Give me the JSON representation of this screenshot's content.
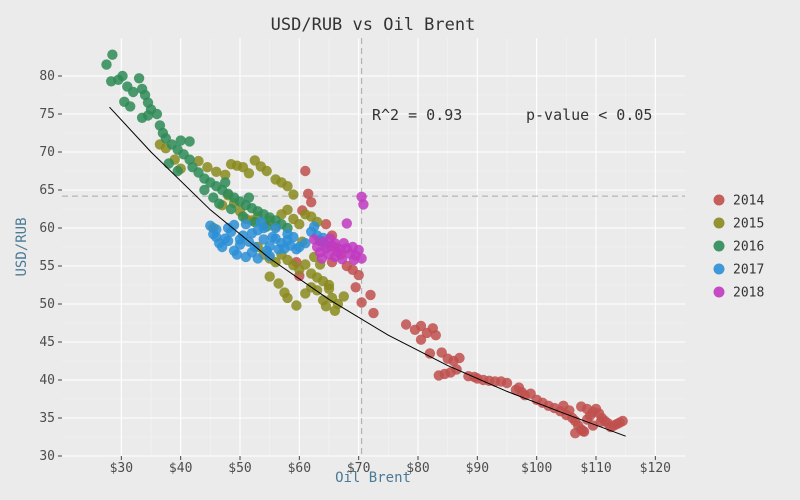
{
  "chart_data": {
    "type": "scatter",
    "title": "USD/RUB vs Oil Brent",
    "xlabel": "Oil Brent",
    "ylabel": "USD/RUB",
    "xlim": [
      20,
      125
    ],
    "ylim": [
      30,
      85
    ],
    "x_ticks": [
      30,
      40,
      50,
      60,
      70,
      80,
      90,
      100,
      110,
      120
    ],
    "x_tick_labels": [
      "$30",
      "$40",
      "$50",
      "$60",
      "$70",
      "$80",
      "$90",
      "$100",
      "$110",
      "$120"
    ],
    "y_ticks": [
      30,
      35,
      40,
      45,
      50,
      55,
      60,
      65,
      70,
      75,
      80
    ],
    "y_tick_labels": [
      "30",
      "35",
      "40",
      "45",
      "50",
      "55",
      "60",
      "65",
      "70",
      "75",
      "80"
    ],
    "grid": true,
    "legend_position": "right",
    "reference_lines": {
      "vertical_x": 70.5,
      "horizontal_y": 64.2
    },
    "annotations": [
      "R^2 = 0.93",
      "p-value < 0.05"
    ],
    "trend_line": [
      [
        28,
        75.9
      ],
      [
        35,
        70.0
      ],
      [
        45,
        62.4
      ],
      [
        55,
        56.0
      ],
      [
        65,
        50.6
      ],
      [
        75,
        45.9
      ],
      [
        85,
        41.9
      ],
      [
        95,
        38.5
      ],
      [
        105,
        35.5
      ],
      [
        115,
        32.6
      ]
    ],
    "series": [
      {
        "name": "2014",
        "color": "#c0504d",
        "points": [
          [
            61,
            67.5
          ],
          [
            61.5,
            64.5
          ],
          [
            62,
            63.4
          ],
          [
            60.5,
            62.3
          ],
          [
            64.5,
            60.5
          ],
          [
            65.5,
            59
          ],
          [
            66,
            57.5
          ],
          [
            67,
            56.5
          ],
          [
            68,
            55
          ],
          [
            69,
            54.5
          ],
          [
            70,
            53.8
          ],
          [
            69.5,
            52.2
          ],
          [
            70.5,
            50.2
          ],
          [
            72.5,
            48.8
          ],
          [
            72,
            51.2
          ],
          [
            60,
            53.7
          ],
          [
            59.5,
            55.5
          ],
          [
            63.5,
            58.3
          ],
          [
            65.5,
            55.5
          ],
          [
            78,
            47.3
          ],
          [
            79.5,
            46.6
          ],
          [
            80.5,
            47.1
          ],
          [
            81.5,
            46.2
          ],
          [
            82.5,
            46.8
          ],
          [
            83,
            45.9
          ],
          [
            82,
            43.5
          ],
          [
            80.5,
            45.3
          ],
          [
            84,
            43.6
          ],
          [
            85,
            42.8
          ],
          [
            86,
            42.5
          ],
          [
            87,
            42.9
          ],
          [
            86.5,
            41.4
          ],
          [
            85.5,
            41.0
          ],
          [
            84.5,
            40.8
          ],
          [
            83.5,
            40.6
          ],
          [
            88.5,
            40.5
          ],
          [
            89.5,
            40.4
          ],
          [
            90,
            40.2
          ],
          [
            91,
            40.0
          ],
          [
            92,
            39.9
          ],
          [
            93,
            39.8
          ],
          [
            94,
            39.8
          ],
          [
            95,
            39.6
          ],
          [
            96.5,
            38.7
          ],
          [
            97.5,
            38.4
          ],
          [
            98,
            38.0
          ],
          [
            97,
            39.0
          ],
          [
            99,
            38.2
          ],
          [
            100,
            37.4
          ],
          [
            101,
            37.0
          ],
          [
            102,
            36.6
          ],
          [
            103,
            36.3
          ],
          [
            104,
            35.9
          ],
          [
            105,
            35.4
          ],
          [
            106,
            35.0
          ],
          [
            106.5,
            34.6
          ],
          [
            107,
            34.0
          ],
          [
            107.5,
            33.5
          ],
          [
            108,
            33.2
          ],
          [
            108.5,
            34.8
          ],
          [
            109,
            35.3
          ],
          [
            109.5,
            35.8
          ],
          [
            110,
            36.2
          ],
          [
            110.5,
            35.6
          ],
          [
            111,
            35.0
          ],
          [
            111.5,
            34.6
          ],
          [
            112,
            34.3
          ],
          [
            112.5,
            33.8
          ],
          [
            113,
            34.0
          ],
          [
            113.5,
            34.2
          ],
          [
            114,
            34.4
          ],
          [
            114.5,
            34.6
          ],
          [
            105.5,
            36.0
          ],
          [
            104.5,
            36.6
          ],
          [
            107.5,
            36.5
          ],
          [
            108.5,
            36.2
          ],
          [
            109.5,
            34.0
          ],
          [
            106.5,
            33.0
          ],
          [
            107.8,
            33.3
          ],
          [
            110.8,
            34.5
          ]
        ]
      },
      {
        "name": "2015",
        "color": "#8a8a1f",
        "points": [
          [
            36.5,
            71
          ],
          [
            37.5,
            70.5
          ],
          [
            39,
            69
          ],
          [
            40,
            67.8
          ],
          [
            43,
            68.8
          ],
          [
            44.5,
            68.0
          ],
          [
            46,
            67.4
          ],
          [
            47.5,
            67.0
          ],
          [
            48.5,
            68.4
          ],
          [
            49.5,
            68.2
          ],
          [
            50.5,
            68.0
          ],
          [
            52.5,
            68.9
          ],
          [
            53.5,
            68.1
          ],
          [
            54.5,
            67.5
          ],
          [
            56,
            66.4
          ],
          [
            57,
            66.0
          ],
          [
            58,
            65.5
          ],
          [
            59,
            64.4
          ],
          [
            48,
            64.3
          ],
          [
            49,
            63.3
          ],
          [
            50,
            62.2
          ],
          [
            51,
            61.2
          ],
          [
            52,
            61.0
          ],
          [
            53,
            61.5
          ],
          [
            54,
            60.5
          ],
          [
            55,
            61.0
          ],
          [
            56,
            60.2
          ],
          [
            57,
            61.8
          ],
          [
            58,
            62.4
          ],
          [
            59,
            61.2
          ],
          [
            60,
            60.5
          ],
          [
            61,
            61.8
          ],
          [
            62,
            61.5
          ],
          [
            63,
            60.8
          ],
          [
            53,
            57.5
          ],
          [
            54,
            56.5
          ],
          [
            55,
            56.0
          ],
          [
            56,
            55.5
          ],
          [
            57,
            56.5
          ],
          [
            58,
            55.8
          ],
          [
            59,
            55.1
          ],
          [
            60,
            54.5
          ],
          [
            61,
            55.2
          ],
          [
            62,
            54.0
          ],
          [
            63,
            53.5
          ],
          [
            64,
            53.0
          ],
          [
            65,
            52.5
          ],
          [
            55,
            53.6
          ],
          [
            56.5,
            52.7
          ],
          [
            57.5,
            51.5
          ],
          [
            58,
            50.8
          ],
          [
            59.5,
            49.8
          ],
          [
            61,
            51.4
          ],
          [
            62,
            52.2
          ],
          [
            63,
            51.8
          ],
          [
            64,
            50.5
          ],
          [
            64.5,
            49.7
          ],
          [
            65.5,
            50.8
          ],
          [
            66.5,
            50.0
          ],
          [
            67.5,
            51.0
          ],
          [
            65,
            52.0
          ],
          [
            66,
            49.1
          ],
          [
            63.5,
            55.2
          ],
          [
            62.5,
            56.2
          ],
          [
            51.5,
            67.2
          ],
          [
            47,
            63.0
          ],
          [
            45.5,
            60.0
          ],
          [
            60.5,
            58.2
          ]
        ]
      },
      {
        "name": "2016",
        "color": "#2e8b57",
        "points": [
          [
            27.5,
            81.5
          ],
          [
            28.5,
            82.8
          ],
          [
            28.3,
            79.3
          ],
          [
            29.5,
            79.5
          ],
          [
            30.2,
            80.0
          ],
          [
            31.0,
            78.6
          ],
          [
            32.0,
            77.9
          ],
          [
            33.0,
            79.7
          ],
          [
            33.5,
            78.3
          ],
          [
            34.0,
            77.5
          ],
          [
            34.5,
            76.5
          ],
          [
            35.0,
            75.6
          ],
          [
            36.0,
            75.0
          ],
          [
            30.5,
            76.6
          ],
          [
            31.5,
            76.0
          ],
          [
            33.5,
            74.5
          ],
          [
            34.5,
            74.8
          ],
          [
            36.5,
            73.5
          ],
          [
            37.0,
            72.5
          ],
          [
            37.5,
            71.8
          ],
          [
            38.5,
            71.0
          ],
          [
            39.5,
            70.3
          ],
          [
            40.5,
            69.7
          ],
          [
            41.5,
            69.0
          ],
          [
            42.0,
            68.0
          ],
          [
            43.0,
            67.3
          ],
          [
            44.0,
            66.5
          ],
          [
            45.0,
            66.0
          ],
          [
            46.0,
            65.5
          ],
          [
            47.0,
            65.0
          ],
          [
            48.0,
            64.5
          ],
          [
            49.0,
            64.0
          ],
          [
            50.0,
            63.5
          ],
          [
            51.0,
            63.0
          ],
          [
            52.0,
            62.6
          ],
          [
            53.0,
            62.2
          ],
          [
            54.0,
            61.8
          ],
          [
            55.0,
            61.4
          ],
          [
            56.0,
            61.0
          ],
          [
            57.0,
            60.5
          ],
          [
            58.0,
            60.0
          ],
          [
            45.5,
            64.0
          ],
          [
            46.5,
            63.2
          ],
          [
            48.5,
            62.5
          ],
          [
            50.5,
            61.5
          ],
          [
            52.5,
            60.8
          ],
          [
            54.5,
            60.2
          ],
          [
            40.0,
            71.5
          ],
          [
            41.5,
            71.4
          ],
          [
            38.0,
            68.5
          ],
          [
            39.5,
            67.5
          ],
          [
            44.0,
            65.0
          ],
          [
            47.5,
            66.0
          ],
          [
            51.5,
            64.0
          ]
        ]
      },
      {
        "name": "2017",
        "color": "#2c8fd6",
        "points": [
          [
            45,
            60.3
          ],
          [
            45.5,
            59.2
          ],
          [
            46,
            58.8
          ],
          [
            46.5,
            58.0
          ],
          [
            47,
            57.5
          ],
          [
            47.5,
            58.6
          ],
          [
            48,
            60.0
          ],
          [
            48.5,
            59.5
          ],
          [
            49,
            57.0
          ],
          [
            49.5,
            56.5
          ],
          [
            50,
            57.8
          ],
          [
            50.5,
            59.0
          ],
          [
            51,
            60.5
          ],
          [
            51.5,
            58.2
          ],
          [
            52,
            56.8
          ],
          [
            52.5,
            57.5
          ],
          [
            53,
            59.7
          ],
          [
            53.5,
            60.8
          ],
          [
            54,
            58.5
          ],
          [
            54.5,
            57.0
          ],
          [
            55,
            56.3
          ],
          [
            55.5,
            58.8
          ],
          [
            56,
            60.0
          ],
          [
            56.5,
            57.2
          ],
          [
            57,
            58.0
          ],
          [
            57.5,
            57.3
          ],
          [
            58,
            58.4
          ],
          [
            58.5,
            57.7
          ],
          [
            59,
            58.8
          ],
          [
            59.5,
            57.2
          ],
          [
            60,
            57.5
          ],
          [
            61,
            58.0
          ],
          [
            62,
            59.5
          ],
          [
            62.5,
            60.2
          ],
          [
            63,
            59.0
          ],
          [
            63.5,
            58.3
          ],
          [
            64,
            58.7
          ],
          [
            64.5,
            57.8
          ],
          [
            46,
            59.8
          ],
          [
            48,
            58.3
          ],
          [
            50,
            58.5
          ],
          [
            52,
            59.3
          ],
          [
            54,
            60.0
          ],
          [
            56,
            58.6
          ],
          [
            58,
            59.2
          ],
          [
            49,
            60.4
          ],
          [
            51,
            56.2
          ],
          [
            53,
            56.0
          ],
          [
            55,
            57.6
          ]
        ]
      },
      {
        "name": "2018",
        "color": "#c13ac1",
        "points": [
          [
            62.5,
            58.5
          ],
          [
            63,
            57.5
          ],
          [
            63.5,
            56.8
          ],
          [
            64,
            58.2
          ],
          [
            64.5,
            57.3
          ],
          [
            65,
            56.5
          ],
          [
            65.5,
            57.6
          ],
          [
            66,
            58.0
          ],
          [
            66.5,
            56.8
          ],
          [
            67,
            57.2
          ],
          [
            67.5,
            58.0
          ],
          [
            68,
            57.3
          ],
          [
            68.5,
            56.6
          ],
          [
            69,
            57.5
          ],
          [
            69.5,
            56.4
          ],
          [
            70,
            57.1
          ],
          [
            70.5,
            56.0
          ],
          [
            68,
            60.6
          ],
          [
            70.5,
            64.1
          ],
          [
            70.8,
            63.1
          ],
          [
            66,
            56.2
          ],
          [
            67.2,
            55.9
          ],
          [
            69.2,
            55.8
          ],
          [
            63.8,
            56.0
          ],
          [
            65.2,
            58.6
          ]
        ]
      }
    ]
  }
}
